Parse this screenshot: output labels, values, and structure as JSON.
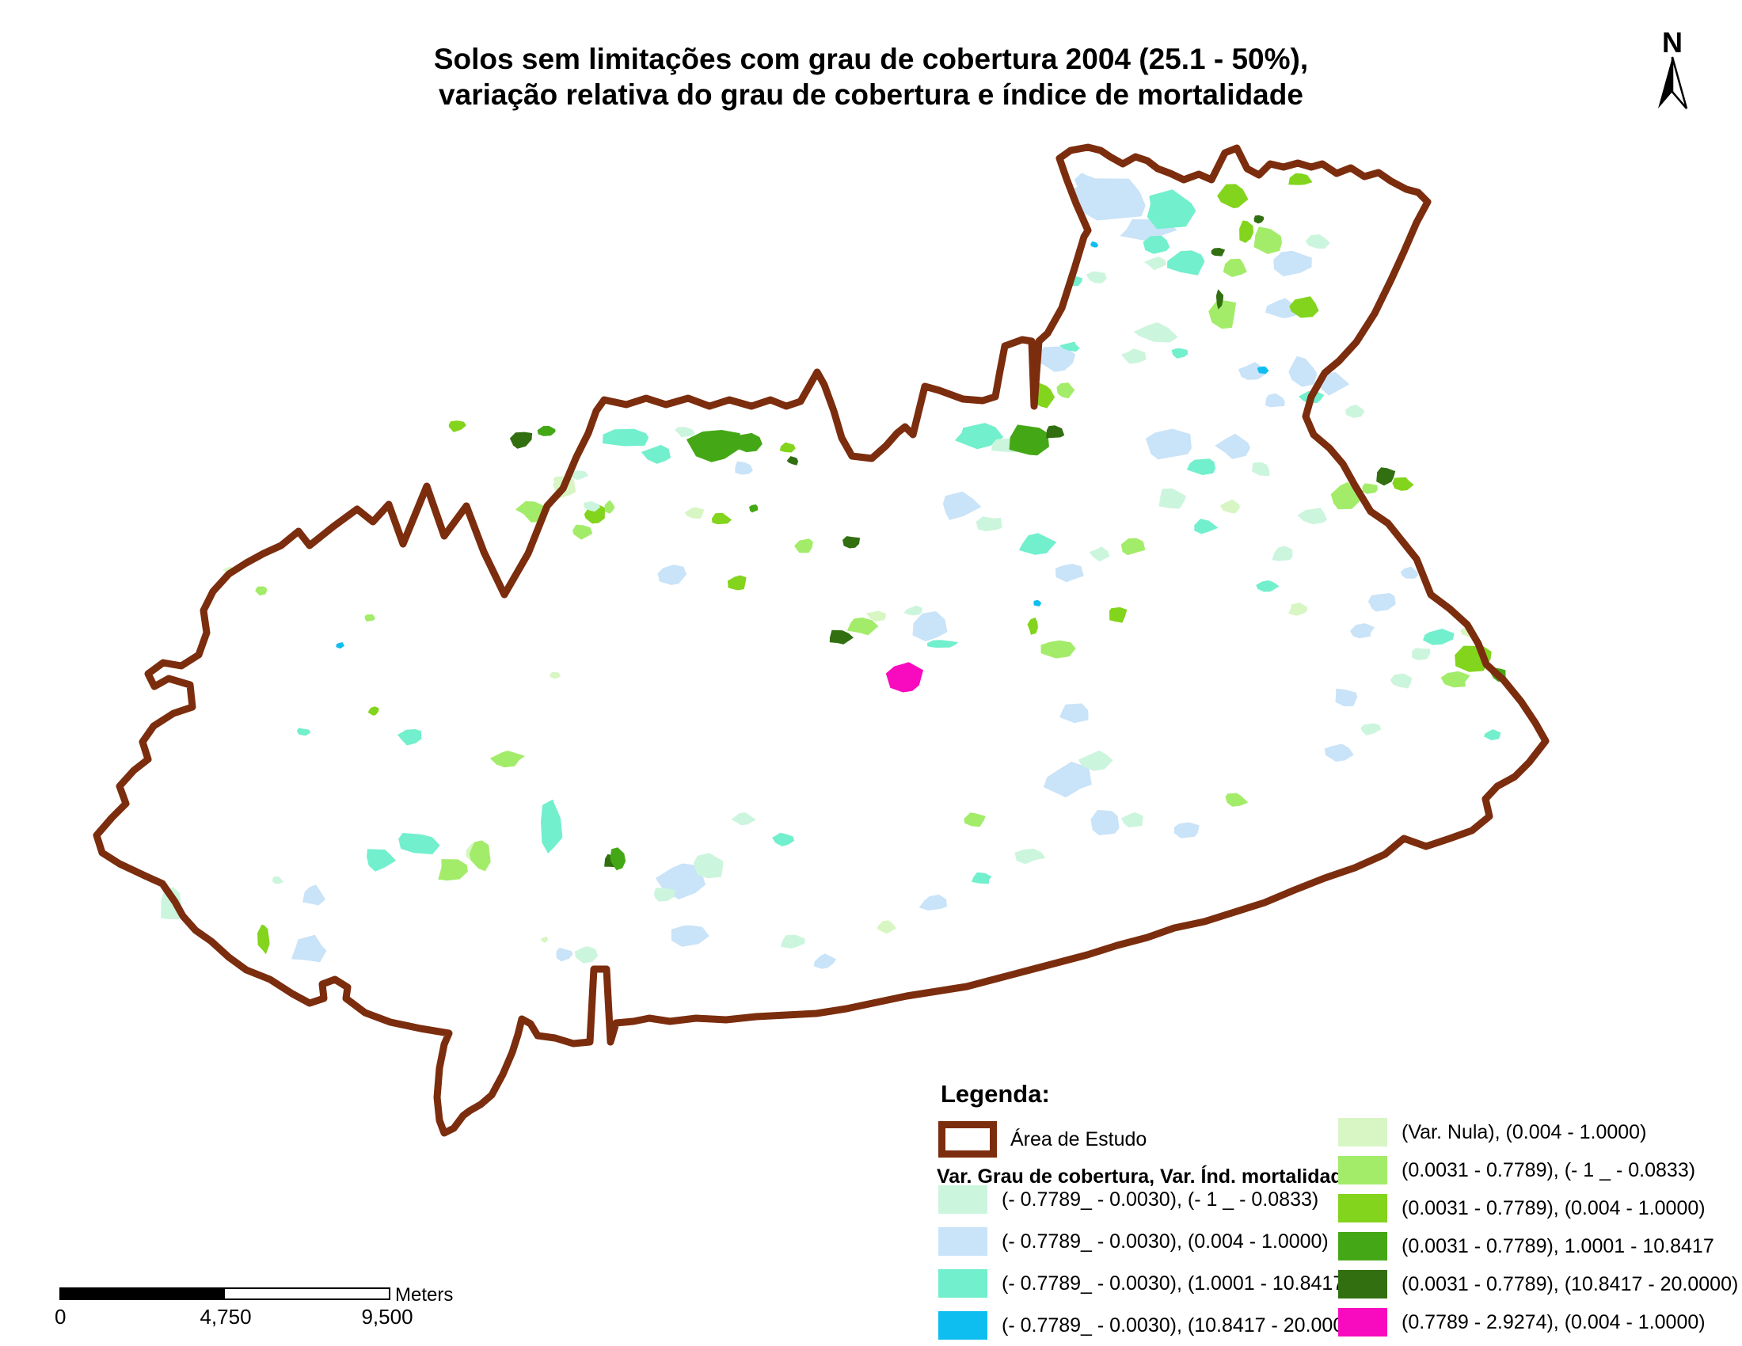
{
  "title": {
    "line1": "Solos sem limitações com grau de cobertura 2004 (25.1 - 50%),",
    "line2": "variação relativa do grau de cobertura e índice de mortalidade"
  },
  "north_arrow": {
    "label": "N"
  },
  "colors": {
    "boundary": "#7B2D0E",
    "classes": [
      "#CCF5DD",
      "#C9E3F8",
      "#72EFCD",
      "#0FBEF0",
      "#D8F6C4",
      "#A3EC6A",
      "#83D41C",
      "#44A816",
      "#326F11",
      "#F80ABE"
    ]
  },
  "legend": {
    "heading": "Legenda:",
    "study_area_label": "Área de Estudo",
    "subheading": "Var. Grau de cobertura, Var. Índ. mortalidade",
    "left_entries": [
      {
        "color_index": 0,
        "label": "(- 0.7789_ - 0.0030), (- 1 _ - 0.0833)"
      },
      {
        "color_index": 1,
        "label": "(- 0.7789_ - 0.0030), (0.004 - 1.0000)"
      },
      {
        "color_index": 2,
        "label": "(- 0.7789_ - 0.0030), (1.0001 - 10.8417)"
      },
      {
        "color_index": 3,
        "label": "(- 0.7789_ - 0.0030), (10.8417 - 20.0000)"
      }
    ],
    "right_entries": [
      {
        "color_index": 4,
        "label": "(Var. Nula), (0.004 - 1.0000)"
      },
      {
        "color_index": 5,
        "label": "(0.0031 - 0.7789), (- 1 _ - 0.0833)"
      },
      {
        "color_index": 6,
        "label": "(0.0031 - 0.7789), (0.004 - 1.0000)"
      },
      {
        "color_index": 7,
        "label": "(0.0031 - 0.7789),  1.0001 - 10.8417"
      },
      {
        "color_index": 8,
        "label": "(0.0031 - 0.7789), (10.8417 - 20.0000)"
      },
      {
        "color_index": 9,
        "label": "(0.7789 - 2.9274), (0.004 - 1.0000)"
      }
    ]
  },
  "scale_bar": {
    "ticks": [
      "0",
      "4,750",
      "9,500"
    ],
    "unit": "Meters"
  },
  "map": {
    "patches": [
      [
        1405,
        250,
        45,
        26,
        1
      ],
      [
        1448,
        290,
        32,
        16,
        1
      ],
      [
        1372,
        228,
        14,
        9,
        1
      ],
      [
        1460,
        332,
        14,
        8,
        0
      ],
      [
        1478,
        265,
        34,
        22,
        2
      ],
      [
        1500,
        330,
        28,
        18,
        2
      ],
      [
        1462,
        308,
        16,
        12,
        2
      ],
      [
        1558,
        248,
        18,
        20,
        6
      ],
      [
        1574,
        292,
        12,
        16,
        6
      ],
      [
        1590,
        277,
        8,
        5,
        8
      ],
      [
        1604,
        302,
        20,
        16,
        5
      ],
      [
        1537,
        318,
        9,
        6,
        8
      ],
      [
        1560,
        338,
        16,
        12,
        5
      ],
      [
        1641,
        226,
        16,
        9,
        6
      ],
      [
        1630,
        332,
        24,
        16,
        1
      ],
      [
        1665,
        305,
        14,
        9,
        0
      ],
      [
        1620,
        390,
        22,
        14,
        1
      ],
      [
        1648,
        388,
        20,
        13,
        6
      ],
      [
        1680,
        484,
        20,
        15,
        1
      ],
      [
        1712,
        520,
        15,
        10,
        0
      ],
      [
        1645,
        470,
        20,
        20,
        1
      ],
      [
        1658,
        502,
        15,
        10,
        2
      ],
      [
        1545,
        397,
        17,
        22,
        5
      ],
      [
        1540,
        378,
        5,
        12,
        8
      ],
      [
        1460,
        420,
        25,
        13,
        0
      ],
      [
        1432,
        450,
        15,
        9,
        0
      ],
      [
        1490,
        445,
        12,
        7,
        2
      ],
      [
        1580,
        470,
        18,
        11,
        1
      ],
      [
        1610,
        505,
        15,
        9,
        1
      ],
      [
        1385,
        350,
        15,
        9,
        0
      ],
      [
        1358,
        355,
        9,
        6,
        2
      ],
      [
        1335,
        455,
        26,
        17,
        1
      ],
      [
        1352,
        438,
        12,
        6,
        2
      ],
      [
        1480,
        560,
        34,
        20,
        1
      ],
      [
        1520,
        588,
        20,
        12,
        2
      ],
      [
        1560,
        565,
        22,
        15,
        1
      ],
      [
        1592,
        592,
        15,
        10,
        0
      ],
      [
        1480,
        630,
        20,
        12,
        0
      ],
      [
        1522,
        665,
        15,
        9,
        2
      ],
      [
        1556,
        640,
        13,
        8,
        4
      ],
      [
        1594,
        467,
        8,
        5,
        3
      ],
      [
        1748,
        600,
        13,
        11,
        8
      ],
      [
        1770,
        612,
        15,
        10,
        6
      ],
      [
        1730,
        617,
        13,
        8,
        5
      ],
      [
        1700,
        627,
        20,
        15,
        5
      ],
      [
        1660,
        652,
        18,
        11,
        0
      ],
      [
        1620,
        700,
        15,
        9,
        0
      ],
      [
        1600,
        740,
        13,
        8,
        2
      ],
      [
        1640,
        770,
        13,
        8,
        4
      ],
      [
        1745,
        762,
        20,
        13,
        1
      ],
      [
        1720,
        797,
        15,
        9,
        1
      ],
      [
        1780,
        725,
        13,
        8,
        1
      ],
      [
        1768,
        860,
        15,
        10,
        0
      ],
      [
        1700,
        880,
        18,
        12,
        1
      ],
      [
        1730,
        920,
        15,
        9,
        0
      ],
      [
        1815,
        805,
        20,
        12,
        2
      ],
      [
        1795,
        825,
        13,
        8,
        0
      ],
      [
        1855,
        798,
        10,
        8,
        4
      ],
      [
        1862,
        832,
        26,
        18,
        6
      ],
      [
        1893,
        852,
        11,
        10,
        7
      ],
      [
        1838,
        858,
        17,
        10,
        5
      ],
      [
        1885,
        928,
        12,
        7,
        2
      ],
      [
        1690,
        950,
        20,
        13,
        1
      ],
      [
        1235,
        550,
        30,
        15,
        2
      ],
      [
        1272,
        562,
        20,
        11,
        0
      ],
      [
        1300,
        558,
        28,
        20,
        7
      ],
      [
        1332,
        545,
        13,
        10,
        8
      ],
      [
        1318,
        500,
        12,
        16,
        6
      ],
      [
        1345,
        492,
        12,
        10,
        5
      ],
      [
        1382,
        309,
        5,
        4,
        3
      ],
      [
        1060,
        805,
        15,
        10,
        8
      ],
      [
        1088,
        790,
        20,
        11,
        5
      ],
      [
        1108,
        778,
        13,
        7,
        4
      ],
      [
        1175,
        792,
        28,
        18,
        1
      ],
      [
        1188,
        814,
        20,
        6,
        2
      ],
      [
        1155,
        772,
        13,
        7,
        0
      ],
      [
        1142,
        858,
        23,
        19,
        9
      ],
      [
        1335,
        818,
        20,
        13,
        5
      ],
      [
        1305,
        792,
        7,
        11,
        6
      ],
      [
        1360,
        900,
        20,
        13,
        1
      ],
      [
        1390,
        700,
        13,
        8,
        0
      ],
      [
        1430,
        690,
        15,
        10,
        5
      ],
      [
        1412,
        776,
        13,
        11,
        6
      ],
      [
        1210,
        640,
        25,
        16,
        1
      ],
      [
        1250,
        662,
        18,
        11,
        0
      ],
      [
        1310,
        690,
        22,
        14,
        2
      ],
      [
        1352,
        722,
        18,
        12,
        1
      ],
      [
        1310,
        762,
        6,
        4,
        3
      ],
      [
        712,
        615,
        15,
        13,
        4
      ],
      [
        730,
        600,
        11,
        7,
        0
      ],
      [
        750,
        650,
        15,
        13,
        6
      ],
      [
        735,
        672,
        13,
        9,
        5
      ],
      [
        770,
        640,
        6,
        9,
        5
      ],
      [
        660,
        555,
        15,
        11,
        8
      ],
      [
        690,
        545,
        11,
        8,
        7
      ],
      [
        576,
        537,
        12,
        8,
        6
      ],
      [
        675,
        645,
        20,
        15,
        5
      ],
      [
        710,
        608,
        11,
        7,
        4
      ],
      [
        746,
        640,
        10,
        6,
        0
      ],
      [
        790,
        552,
        30,
        13,
        2
      ],
      [
        830,
        575,
        20,
        11,
        2
      ],
      [
        865,
        545,
        13,
        7,
        0
      ],
      [
        900,
        565,
        35,
        25,
        7
      ],
      [
        945,
        560,
        17,
        15,
        7
      ],
      [
        995,
        565,
        10,
        7,
        6
      ],
      [
        1002,
        582,
        7,
        6,
        8
      ],
      [
        938,
        592,
        11,
        9,
        1
      ],
      [
        878,
        648,
        11,
        7,
        4
      ],
      [
        910,
        655,
        12,
        8,
        6
      ],
      [
        952,
        642,
        6,
        5,
        7
      ],
      [
        1015,
        690,
        13,
        9,
        5
      ],
      [
        1075,
        685,
        11,
        9,
        8
      ],
      [
        848,
        725,
        20,
        13,
        1
      ],
      [
        932,
        735,
        13,
        10,
        6
      ],
      [
        640,
        960,
        20,
        13,
        5
      ],
      [
        519,
        931,
        18,
        11,
        2
      ],
      [
        700,
        853,
        8,
        5,
        4
      ],
      [
        472,
        898,
        7,
        5,
        6
      ],
      [
        330,
        745,
        10,
        6,
        5
      ],
      [
        467,
        780,
        8,
        5,
        5
      ],
      [
        382,
        924,
        9,
        5,
        2
      ],
      [
        570,
        1100,
        18,
        15,
        5
      ],
      [
        598,
        1076,
        12,
        13,
        4
      ],
      [
        695,
        1045,
        15,
        30,
        2
      ],
      [
        773,
        1088,
        11,
        10,
        8
      ],
      [
        480,
        1085,
        20,
        15,
        2
      ],
      [
        350,
        1112,
        8,
        5,
        0
      ],
      [
        395,
        1130,
        15,
        13,
        1
      ],
      [
        215,
        1145,
        15,
        22,
        0
      ],
      [
        333,
        1185,
        7,
        18,
        6
      ],
      [
        390,
        1200,
        23,
        17,
        1
      ],
      [
        430,
        815,
        6,
        4,
        3
      ],
      [
        290,
        720,
        8,
        5,
        4
      ],
      [
        530,
        1065,
        25,
        15,
        2
      ],
      [
        605,
        1080,
        15,
        22,
        5
      ],
      [
        780,
        1085,
        11,
        14,
        7
      ],
      [
        860,
        1110,
        30,
        22,
        1
      ],
      [
        895,
        1095,
        20,
        15,
        0
      ],
      [
        838,
        1130,
        15,
        10,
        0
      ],
      [
        870,
        1180,
        22,
        14,
        1
      ],
      [
        740,
        1205,
        15,
        10,
        0
      ],
      [
        712,
        1205,
        10,
        8,
        1
      ],
      [
        688,
        1187,
        5,
        4,
        4
      ],
      [
        940,
        1035,
        15,
        9,
        0
      ],
      [
        990,
        1060,
        13,
        8,
        2
      ],
      [
        1000,
        1190,
        15,
        9,
        0
      ],
      [
        1040,
        1215,
        15,
        10,
        1
      ],
      [
        1120,
        1170,
        13,
        8,
        4
      ],
      [
        1180,
        1140,
        18,
        12,
        1
      ],
      [
        1240,
        1110,
        13,
        8,
        2
      ],
      [
        1300,
        1080,
        18,
        10,
        0
      ],
      [
        1430,
        1035,
        15,
        9,
        0
      ],
      [
        1500,
        1048,
        18,
        11,
        1
      ],
      [
        1560,
        1010,
        15,
        9,
        5
      ],
      [
        1230,
        1035,
        15,
        10,
        5
      ],
      [
        1350,
        985,
        30,
        20,
        1
      ],
      [
        1385,
        960,
        20,
        12,
        0
      ],
      [
        1395,
        1040,
        22,
        15,
        1
      ]
    ]
  }
}
